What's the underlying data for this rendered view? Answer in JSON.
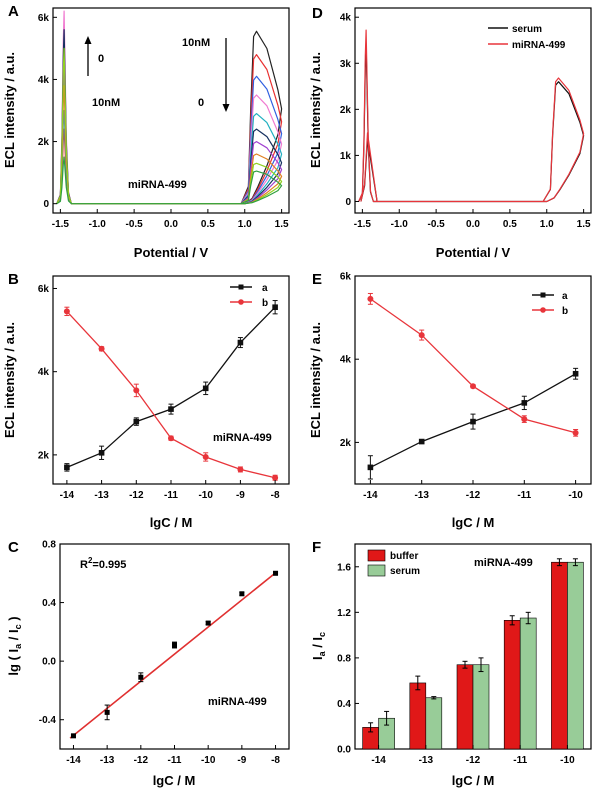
{
  "colors": {
    "a": "#111111",
    "b": "#e8353b",
    "bar_buffer": "#e01818",
    "bar_serum": "#98cc98",
    "fit": "#e03030"
  },
  "chart_data": [
    {
      "panel": "A",
      "type": "line",
      "xlabel": "Potential / V",
      "ylabel": "ECL intensity / a.u.",
      "xlim": [
        -1.6,
        1.6
      ],
      "ylim": [
        -300,
        6300
      ],
      "xticks": [
        -1.5,
        -1.0,
        -0.5,
        0.0,
        0.5,
        1.0,
        1.5
      ],
      "xtick_labels": [
        "-1.5",
        "-1.0",
        "-0.5",
        "0.0",
        "0.5",
        "1.0",
        "1.5"
      ],
      "yticks": [
        0,
        2000,
        4000,
        6000
      ],
      "ytick_labels": [
        "0",
        "2k",
        "4k",
        "6k"
      ],
      "annotations": [
        "0",
        "10nM",
        "10nM",
        "0",
        "miRNA-499"
      ],
      "series": [
        {
          "color": "#222222",
          "cathodic_peak": 5200,
          "anodic_peak": 5550
        },
        {
          "color": "#e83030",
          "cathodic_peak": 2400,
          "anodic_peak": 4800
        },
        {
          "color": "#3060e0",
          "cathodic_peak": 4300,
          "anodic_peak": 4100
        },
        {
          "color": "#f07ad0",
          "cathodic_peak": 6200,
          "anodic_peak": 3500
        },
        {
          "color": "#20b0c0",
          "cathodic_peak": 3000,
          "anodic_peak": 2900
        },
        {
          "color": "#163060",
          "cathodic_peak": 5600,
          "anodic_peak": 2400
        },
        {
          "color": "#a040d0",
          "cathodic_peak": 4500,
          "anodic_peak": 2000
        },
        {
          "color": "#e08020",
          "cathodic_peak": 3800,
          "anodic_peak": 1600
        },
        {
          "color": "#90d020",
          "cathodic_peak": 5000,
          "anodic_peak": 1300
        },
        {
          "color": "#30a040",
          "cathodic_peak": 1500,
          "anodic_peak": 1050
        }
      ]
    },
    {
      "panel": "D",
      "type": "line",
      "xlabel": "Potential / V",
      "ylabel": "ECL intensity / a.u.",
      "xlim": [
        -1.6,
        1.6
      ],
      "ylim": [
        -250,
        4200
      ],
      "xticks": [
        -1.5,
        -1.0,
        -0.5,
        0.0,
        0.5,
        1.0,
        1.5
      ],
      "xtick_labels": [
        "-1.5",
        "-1.0",
        "-0.5",
        "0.0",
        "0.5",
        "1.0",
        "1.5"
      ],
      "yticks": [
        0,
        1000,
        2000,
        3000,
        4000
      ],
      "ytick_labels": [
        "0",
        "1k",
        "2k",
        "3k",
        "4k"
      ],
      "legend": "top-right",
      "series": [
        {
          "name": "serum",
          "color": "#111111",
          "cathodic_peak": 3400,
          "anodic_peak": 2600
        },
        {
          "name": "miRNA-499",
          "color": "#e8353b",
          "cathodic_peak": 3720,
          "anodic_peak": 2680
        }
      ]
    },
    {
      "panel": "B",
      "type": "line",
      "xlabel": "lgC / M",
      "ylabel": "ECL intensity / a.u.",
      "x": [
        -14,
        -13,
        -12,
        -11,
        -10,
        -9,
        -8
      ],
      "xlim": [
        -14.4,
        -7.6
      ],
      "ylim": [
        1300,
        6300
      ],
      "yticks": [
        2000,
        4000,
        6000
      ],
      "ytick_labels": [
        "2k",
        "4k",
        "6k"
      ],
      "legend": "top-right",
      "annotations": [
        "miRNA-499"
      ],
      "series": [
        {
          "name": "a",
          "values": [
            1700,
            2050,
            2800,
            3100,
            3600,
            4700,
            5550
          ],
          "errors": [
            90,
            160,
            90,
            120,
            150,
            120,
            160
          ]
        },
        {
          "name": "b",
          "values": [
            5450,
            4550,
            3550,
            2400,
            1950,
            1650,
            1450
          ],
          "errors": [
            100,
            50,
            150,
            50,
            100,
            60,
            60
          ]
        }
      ]
    },
    {
      "panel": "E",
      "type": "line",
      "xlabel": "lgC / M",
      "ylabel": "ECL intensity / a.u.",
      "x": [
        -14,
        -13,
        -12,
        -11,
        -10
      ],
      "xlim": [
        -14.3,
        -9.7
      ],
      "ylim": [
        1000,
        6000
      ],
      "yticks": [
        2000,
        4000,
        6000
      ],
      "ytick_labels": [
        "2k",
        "4k",
        "6k"
      ],
      "legend": "top-right",
      "series": [
        {
          "name": "a",
          "values": [
            1400,
            2020,
            2500,
            2950,
            3650
          ],
          "errors": [
            280,
            40,
            180,
            160,
            130
          ]
        },
        {
          "name": "b",
          "values": [
            5450,
            4580,
            3350,
            2560,
            2230
          ],
          "errors": [
            130,
            120,
            40,
            80,
            80
          ]
        }
      ]
    },
    {
      "panel": "C",
      "type": "scatter",
      "xlabel": "lgC / M",
      "ylabel": "lg ( I_a / I_c )",
      "x": [
        -14,
        -13,
        -12,
        -11,
        -10,
        -9,
        -8
      ],
      "values": [
        -0.51,
        -0.35,
        -0.11,
        0.11,
        0.26,
        0.46,
        0.6
      ],
      "errors": [
        0.01,
        0.05,
        0.03,
        0.02,
        0.01,
        0.01,
        0.01
      ],
      "fit": {
        "slope": 0.185,
        "intercept": 2.083
      },
      "xlim": [
        -14.4,
        -7.6
      ],
      "ylim": [
        -0.6,
        0.8
      ],
      "yticks": [
        -0.4,
        0.0,
        0.4,
        0.8
      ],
      "ytick_labels": [
        "-0.4",
        "0.0",
        "0.4",
        "0.8"
      ],
      "annotations": [
        "R",
        "2",
        "=0.995",
        "miRNA-499"
      ]
    },
    {
      "panel": "F",
      "type": "bar",
      "xlabel": "lgC / M",
      "ylabel": "I_a / I_c",
      "categories": [
        "-14",
        "-13",
        "-12",
        "-11",
        "-10"
      ],
      "ylim": [
        0,
        1.8
      ],
      "yticks": [
        0.0,
        0.4,
        0.8,
        1.2,
        1.6
      ],
      "ytick_labels": [
        "0.0",
        "0.4",
        "0.8",
        "1.2",
        "1.6"
      ],
      "legend": "top-left",
      "annotations": [
        "miRNA-499"
      ],
      "series": [
        {
          "name": "buffer",
          "values": [
            0.19,
            0.58,
            0.74,
            1.13,
            1.64
          ],
          "errors": [
            0.04,
            0.06,
            0.03,
            0.04,
            0.03
          ]
        },
        {
          "name": "serum",
          "values": [
            0.27,
            0.45,
            0.74,
            1.15,
            1.64
          ],
          "errors": [
            0.06,
            0.01,
            0.06,
            0.05,
            0.03
          ]
        }
      ]
    }
  ]
}
